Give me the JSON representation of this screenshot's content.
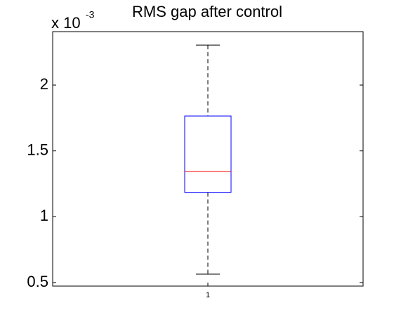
{
  "chart_data": {
    "type": "box",
    "title": "RMS gap after control",
    "multiplier": "x 10",
    "multiplier_exponent": "-3",
    "categories": [
      "1"
    ],
    "boxes": [
      {
        "min": 0.564,
        "q1": 1.185,
        "median": 1.345,
        "q3": 1.765,
        "max": 2.304
      }
    ],
    "box_color": "#0000ff",
    "median_color": "#ff0000",
    "whisker_color": "#000000",
    "ylim": [
      0.473,
      2.406
    ],
    "yticks": [
      0.5,
      1,
      1.5,
      2
    ]
  }
}
